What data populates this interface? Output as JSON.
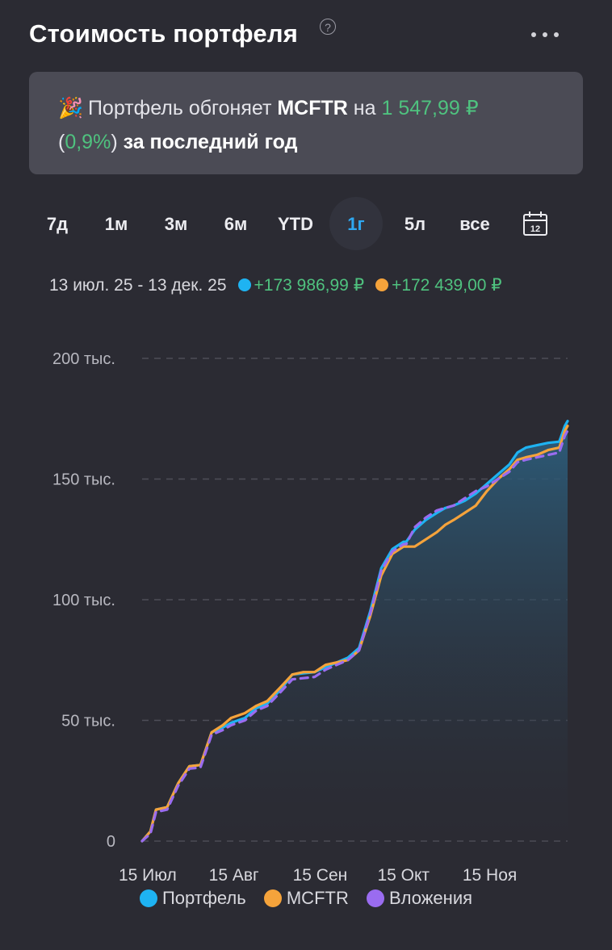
{
  "header": {
    "title": "Стоимость портфеля",
    "help_glyph": "?"
  },
  "banner": {
    "emoji": "🎉",
    "text_before": "Портфель обгоняет",
    "index": "MCFTR",
    "text_on": "на",
    "amount": "1 547,99 ₽",
    "paren_open": "(",
    "percent": "0,9%",
    "paren_close": ")",
    "tail": "за последний год"
  },
  "periods": [
    "7д",
    "1м",
    "3м",
    "6м",
    "YTD",
    "1г",
    "5л",
    "все"
  ],
  "active_period": "1г",
  "calendar_day": "12",
  "summary": {
    "range": "13 июл. 25 - 13 дек. 25",
    "portfolio_change": "+173 986,99 ₽",
    "index_change": "+172 439,00 ₽"
  },
  "colors": {
    "background": "#2b2b33",
    "portfolio": "#1eb3f2",
    "mcftr": "#f5a33b",
    "contributions": "#9a6cf0",
    "positive": "#4fc27f"
  },
  "legend": {
    "portfolio": "Портфель",
    "mcftr": "MCFTR",
    "contributions": "Вложения"
  },
  "chart_data": {
    "type": "line",
    "x_ticks": [
      "15 Июл",
      "15 Авг",
      "15 Сен",
      "15 Окт",
      "15 Ноя"
    ],
    "y_ticks": [
      "0",
      "50 тыс.",
      "100 тыс.",
      "150 тыс.",
      "200 тыс."
    ],
    "ylim": [
      0,
      200000
    ],
    "x_unit": "days since 13 июл. 25",
    "x": [
      0,
      3,
      5,
      9,
      13,
      17,
      21,
      25,
      29,
      32,
      37,
      41,
      45,
      50,
      54,
      58,
      62,
      66,
      70,
      74,
      78,
      82,
      86,
      90,
      94,
      95,
      98,
      102,
      106,
      109,
      112,
      116,
      120,
      124,
      128,
      132,
      135,
      138,
      142,
      146,
      150,
      152,
      153
    ],
    "series": [
      {
        "name": "Портфель",
        "values": [
          0,
          4000,
          13000,
          14000,
          24000,
          31000,
          31500,
          45000,
          47000,
          49000,
          51000,
          55000,
          57000,
          63000,
          69000,
          69500,
          70000,
          72000,
          74000,
          76000,
          80000,
          95000,
          113000,
          121000,
          124000,
          124000,
          129000,
          133000,
          136000,
          138000,
          139000,
          141000,
          144000,
          148000,
          152000,
          156000,
          161000,
          163000,
          164000,
          165000,
          165500,
          172000,
          174000
        ]
      },
      {
        "name": "MCFTR",
        "values": [
          0,
          4000,
          13000,
          14000,
          24000,
          31000,
          31500,
          45000,
          48000,
          51000,
          53000,
          56000,
          58000,
          64000,
          69000,
          70000,
          70000,
          73000,
          74000,
          75000,
          79000,
          93000,
          110000,
          119000,
          122000,
          122000,
          122000,
          125000,
          128000,
          131000,
          133000,
          136000,
          139000,
          145000,
          150000,
          154000,
          158000,
          159000,
          160000,
          162000,
          163000,
          170000,
          172000
        ]
      },
      {
        "name": "Вложения",
        "values": [
          0,
          3000,
          12000,
          13000,
          23000,
          30000,
          30500,
          44000,
          46000,
          48000,
          50000,
          54000,
          56000,
          62000,
          67000,
          67500,
          68000,
          71000,
          73000,
          75000,
          79000,
          94000,
          112000,
          120000,
          123000,
          123000,
          130000,
          134000,
          137000,
          138000,
          139000,
          142000,
          145000,
          147000,
          150000,
          153000,
          157000,
          158000,
          159000,
          160000,
          161000,
          168000,
          170000
        ]
      }
    ],
    "grid": "horizontal dashed",
    "legend_position": "bottom"
  }
}
